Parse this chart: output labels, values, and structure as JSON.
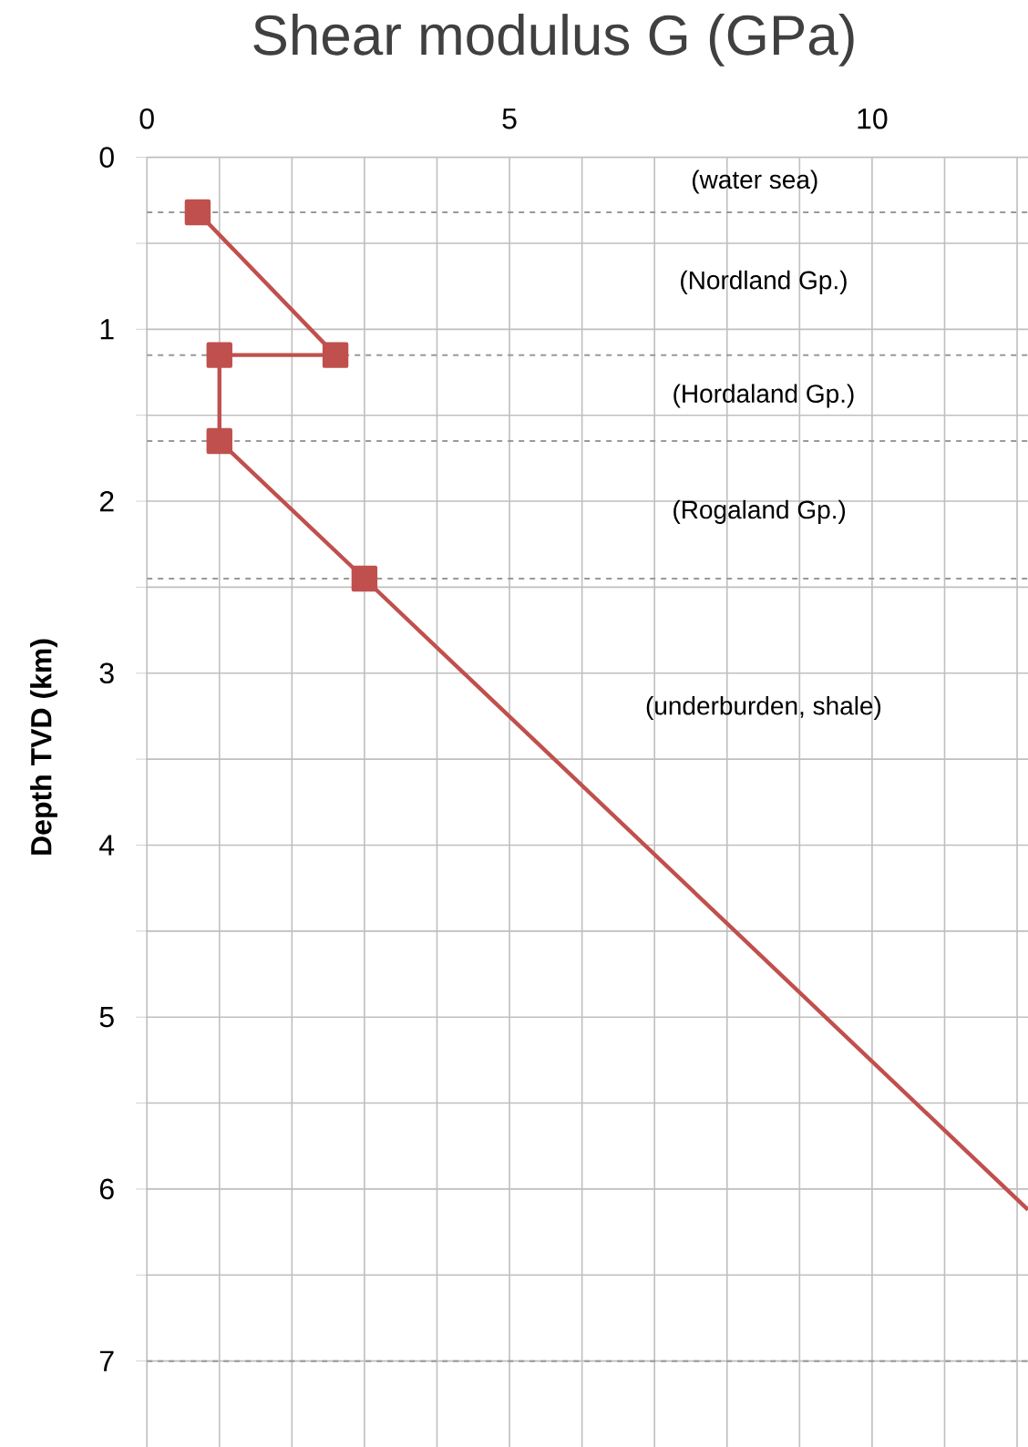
{
  "chart_data": {
    "type": "line",
    "title": "Shear modulus G (GPa)",
    "ylabel": "Depth TVD (km)",
    "xlim": [
      0,
      12.15
    ],
    "ylim": [
      7.5,
      0
    ],
    "xticks": [
      0,
      {
        "value": 1,
        "label": null
      },
      {
        "value": 2,
        "label": null
      },
      {
        "value": 3,
        "label": null
      },
      {
        "value": 4,
        "label": null
      },
      5,
      {
        "value": 6,
        "label": null
      },
      {
        "value": 7,
        "label": null
      },
      {
        "value": 8,
        "label": null
      },
      {
        "value": 9,
        "label": null
      },
      10,
      {
        "value": 11,
        "label": null
      },
      {
        "value": 12,
        "label": null
      }
    ],
    "yticks": [
      0,
      {
        "value": 0.5,
        "label": null
      },
      1,
      {
        "value": 1.5,
        "label": null
      },
      2,
      {
        "value": 2.5,
        "label": null
      },
      3,
      {
        "value": 3.5,
        "label": null
      },
      4,
      {
        "value": 4.5,
        "label": null
      },
      5,
      {
        "value": 5.5,
        "label": null
      },
      6,
      {
        "value": 6.5,
        "label": null
      },
      7
    ],
    "grid": true,
    "series": [
      {
        "color": "#c0504d",
        "marker": "square",
        "x": [
          0.7,
          2.6,
          1.0,
          1.0,
          3.0
        ],
        "values": [
          0.32,
          1.15,
          1.15,
          1.65,
          2.45
        ]
      },
      {
        "color": "#c0504d",
        "marker": "none",
        "x": [
          3.0,
          12.15
        ],
        "values": [
          2.45,
          6.12
        ]
      }
    ],
    "ref_lines": [
      {
        "axis": "y",
        "value": 0.32,
        "color": "#999999",
        "line_style": "dashed"
      },
      {
        "axis": "y",
        "value": 1.15,
        "color": "#999999",
        "line_style": "dashed"
      },
      {
        "axis": "y",
        "value": 1.65,
        "color": "#999999",
        "line_style": "dashed"
      },
      {
        "axis": "y",
        "value": 2.45,
        "color": "#999999",
        "line_style": "dashed"
      },
      {
        "axis": "y",
        "value": 7.0,
        "color": "#999999",
        "line_style": "dashed"
      }
    ],
    "annotations": [
      "(water sea)",
      "(Nordland Gp.)",
      "(Hordaland Gp.)",
      "(Rogaland Gp.)",
      "(underburden, shale)"
    ]
  }
}
